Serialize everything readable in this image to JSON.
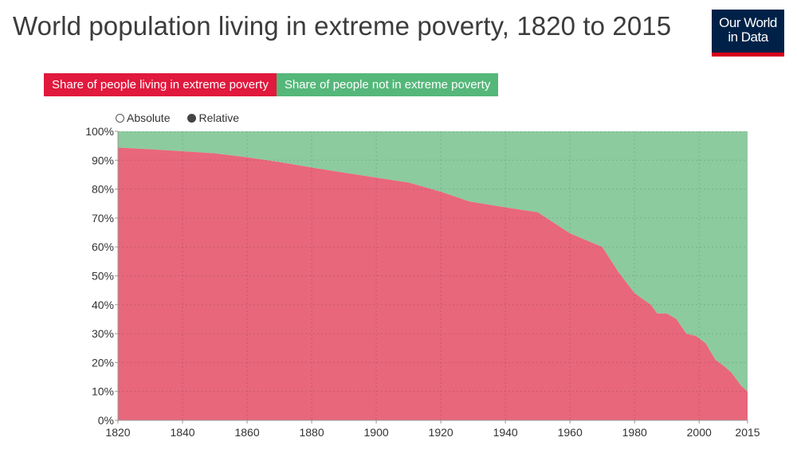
{
  "header": {
    "title": "World population living in extreme poverty, 1820 to 2015",
    "logo_line1": "Our World",
    "logo_line2": "in Data"
  },
  "legend": [
    {
      "label": "Share of people living in extreme poverty",
      "color": "#e0193d"
    },
    {
      "label": "Share of people not in extreme poverty",
      "color": "#55b77a"
    }
  ],
  "controls": {
    "absolute_label": "Absolute",
    "relative_label": "Relative",
    "selected": "relative"
  },
  "colors": {
    "poverty_area": "#e8677b",
    "not_poverty_area": "#8ccb9e",
    "logo_bg": "#002147",
    "logo_accent": "#d6001c"
  },
  "chart_data": {
    "type": "area",
    "stacked": true,
    "relative": true,
    "x": [
      1820,
      1830,
      1840,
      1850,
      1860,
      1870,
      1880,
      1890,
      1900,
      1910,
      1920,
      1929,
      1940,
      1950,
      1960,
      1970,
      1975,
      1980,
      1985,
      1987,
      1990,
      1993,
      1996,
      1999,
      2002,
      2005,
      2008,
      2010,
      2013,
      2015
    ],
    "series": [
      {
        "name": "Share of people living in extreme poverty",
        "values": [
          94.4,
          93.8,
          93.1,
          92.4,
          91.0,
          89.4,
          87.5,
          85.7,
          84.0,
          82.3,
          79.1,
          75.7,
          73.7,
          72.0,
          64.7,
          60.0,
          51.3,
          44.0,
          40.0,
          37.0,
          37.0,
          35.0,
          30.0,
          29.2,
          26.7,
          21.0,
          18.5,
          16.5,
          12.0,
          10.0
        ]
      },
      {
        "name": "Share of people not in extreme poverty",
        "values": [
          5.6,
          6.2,
          6.9,
          7.6,
          9.0,
          10.6,
          12.5,
          14.3,
          16.0,
          17.7,
          20.9,
          24.3,
          26.3,
          28.0,
          35.3,
          40.0,
          48.7,
          56.0,
          60.0,
          63.0,
          63.0,
          65.0,
          70.0,
          70.8,
          73.3,
          79.0,
          81.5,
          83.5,
          88.0,
          90.0
        ]
      }
    ],
    "xlim": [
      1820,
      2015
    ],
    "ylim": [
      0,
      100
    ],
    "xticks": [
      1820,
      1840,
      1860,
      1880,
      1900,
      1920,
      1940,
      1960,
      1980,
      2000,
      2015
    ],
    "yticks": [
      0,
      10,
      20,
      30,
      40,
      50,
      60,
      70,
      80,
      90,
      100
    ],
    "xtick_labels": [
      "1820",
      "1840",
      "1860",
      "1880",
      "1900",
      "1920",
      "1940",
      "1960",
      "1980",
      "2000",
      "2015"
    ],
    "ytick_labels": [
      "0%",
      "10%",
      "20%",
      "30%",
      "40%",
      "50%",
      "60%",
      "70%",
      "80%",
      "90%",
      "100%"
    ],
    "grid": true
  }
}
